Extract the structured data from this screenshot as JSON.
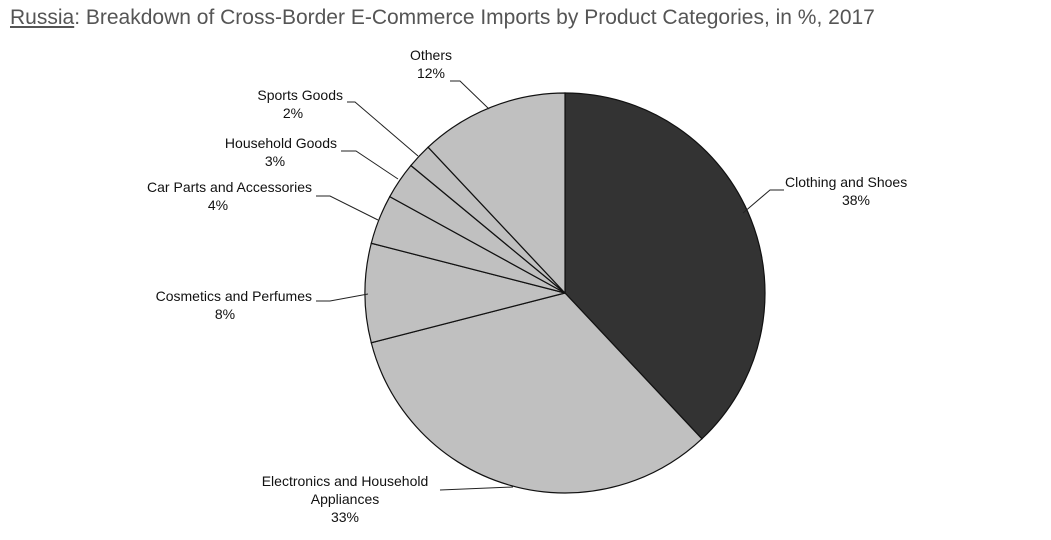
{
  "title": {
    "country": "Russia",
    "text": ": Breakdown of Cross-Border E-Commerce Imports by Product Categories, in %, 2017"
  },
  "colors": {
    "accent_slice": "#333333",
    "other_slices": "#c0c0c0",
    "slice_stroke": "#111111",
    "title_text": "#555555"
  },
  "chart_data": {
    "type": "pie",
    "title": "Russia: Breakdown of Cross-Border E-Commerce Imports by Product Categories, in %, 2017",
    "unit": "%",
    "slices": [
      {
        "label": "Clothing and Shoes",
        "value": 38,
        "value_label": "38%"
      },
      {
        "label": "Electronics and Household Appliances",
        "value": 33,
        "value_label": "33%"
      },
      {
        "label": "Cosmetics and Perfumes",
        "value": 8,
        "value_label": "8%"
      },
      {
        "label": "Car Parts and Accessories",
        "value": 4,
        "value_label": "4%"
      },
      {
        "label": "Household Goods",
        "value": 3,
        "value_label": "3%"
      },
      {
        "label": "Sports Goods",
        "value": 2,
        "value_label": "2%"
      },
      {
        "label": "Others",
        "value": 12,
        "value_label": "12%"
      }
    ]
  }
}
